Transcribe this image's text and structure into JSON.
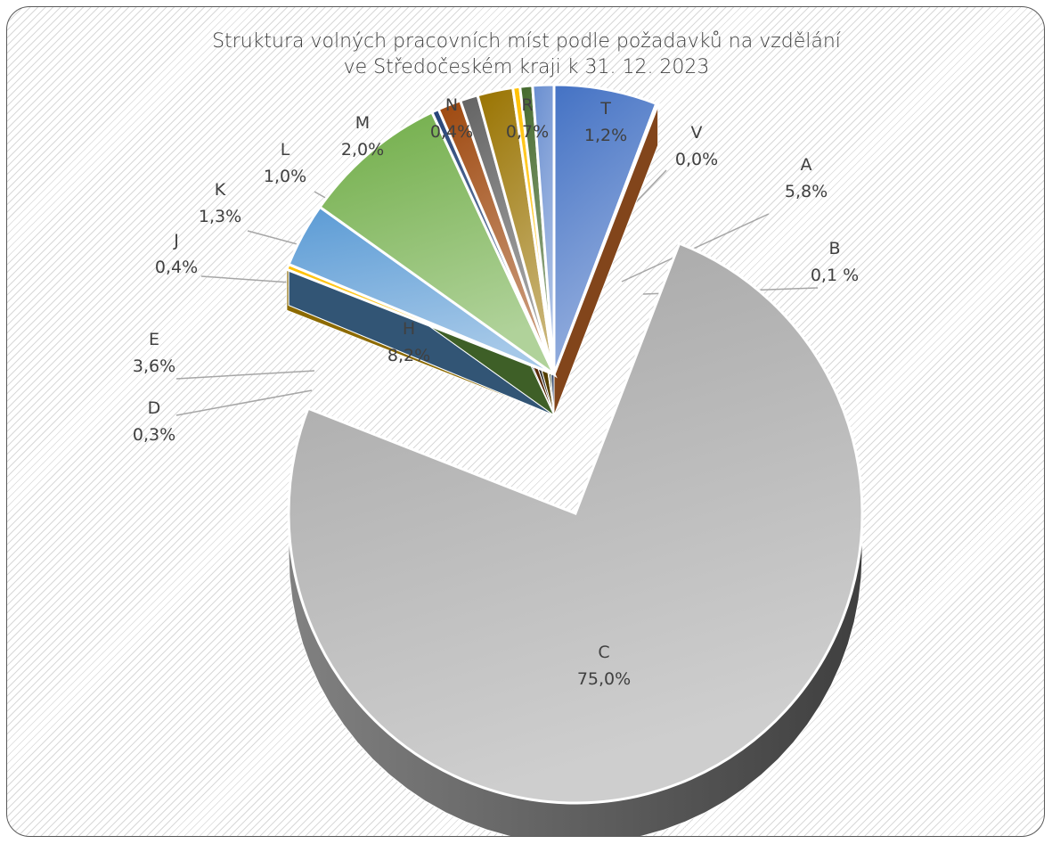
{
  "chart_data": {
    "type": "pie",
    "title_lines": [
      "Struktura volných pracovních míst podle požadavků na vzdělání",
      "ve Středočeském kraji k 31. 12. 2023"
    ],
    "slices": [
      {
        "category": "A",
        "value": 5.8,
        "label": "5,8%",
        "color": "#4472c4"
      },
      {
        "category": "B",
        "value": 0.1,
        "label": "0,1 %",
        "color": "#ed7d31"
      },
      {
        "category": "C",
        "value": 75.0,
        "label": "75,0%",
        "color": "#a5a5a5"
      },
      {
        "category": "D",
        "value": 0.3,
        "label": "0,3%",
        "color": "#ffc000"
      },
      {
        "category": "E",
        "value": 3.6,
        "label": "3,6%",
        "color": "#5b9bd5"
      },
      {
        "category": "H",
        "value": 8.2,
        "label": "8,2%",
        "color": "#70ad47"
      },
      {
        "category": "J",
        "value": 0.4,
        "label": "0,4%",
        "color": "#264478"
      },
      {
        "category": "K",
        "value": 1.3,
        "label": "1,3%",
        "color": "#9e480e"
      },
      {
        "category": "L",
        "value": 1.0,
        "label": "1,0%",
        "color": "#636363"
      },
      {
        "category": "M",
        "value": 2.0,
        "label": "2,0%",
        "color": "#997300"
      },
      {
        "category": "N",
        "value": 0.4,
        "label": "0,4%",
        "color": "#ffc000"
      },
      {
        "category": "R",
        "value": 0.7,
        "label": "0,7%",
        "color": "#43682b"
      },
      {
        "category": "T",
        "value": 1.2,
        "label": "1,2%",
        "color": "#698ed0"
      },
      {
        "category": "V",
        "value": 0.0,
        "label": "0,0%",
        "color": "#f4b183"
      }
    ],
    "exploded_category": "C",
    "legend": "none",
    "style": "3d-pie"
  }
}
